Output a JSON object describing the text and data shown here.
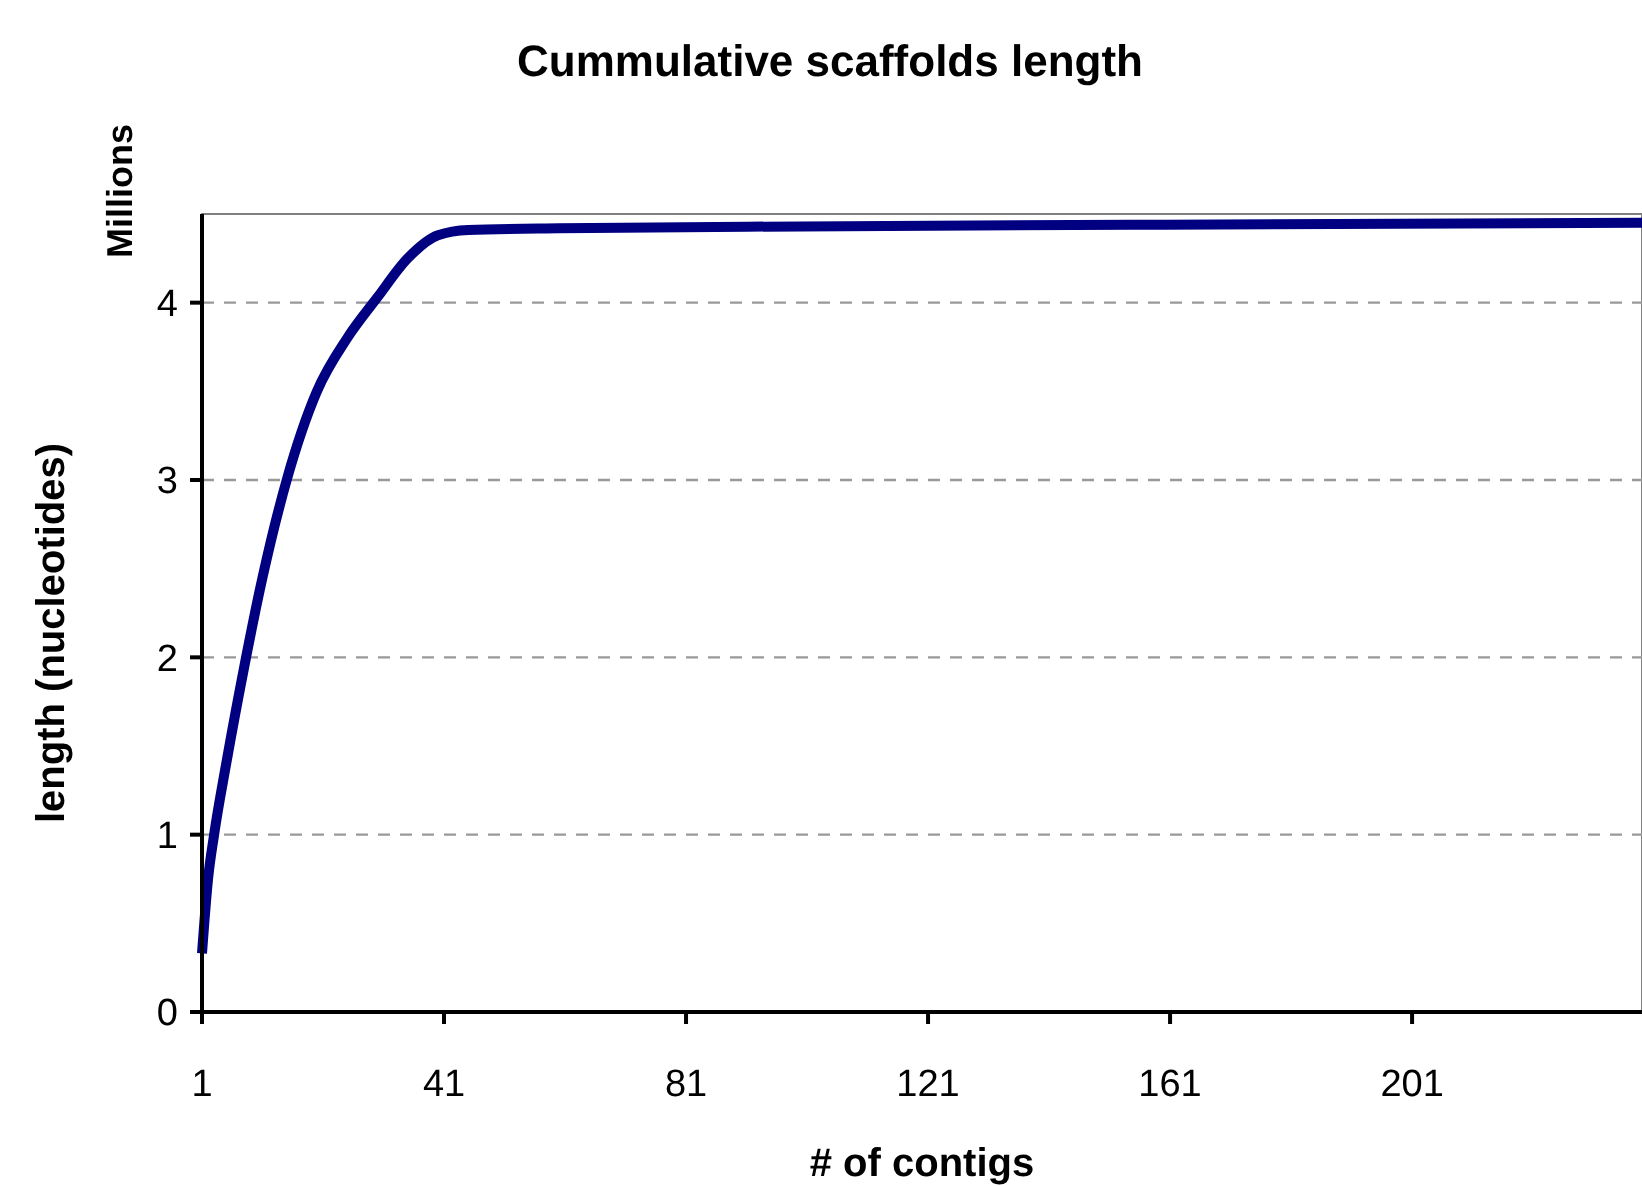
{
  "chart_data": {
    "type": "line",
    "title": "Cummulative scaffolds length",
    "xlabel": "# of contigs",
    "ylabel": "length (nucleotides)",
    "annotations": [
      "Millions"
    ],
    "x": [
      1,
      2,
      3,
      5,
      8,
      11,
      15,
      20,
      25,
      30,
      35,
      40,
      45,
      60,
      100,
      160,
      239
    ],
    "series": [
      {
        "color": "#000080",
        "values": [
          0.33,
          0.75,
          1.0,
          1.4,
          1.95,
          2.45,
          3.0,
          3.5,
          3.8,
          4.03,
          4.25,
          4.38,
          4.41,
          4.42,
          4.43,
          4.44,
          4.45
        ]
      }
    ],
    "xlim": [
      1,
      239
    ],
    "xticks": [
      1,
      41,
      81,
      121,
      161,
      201
    ],
    "ylim": [
      0,
      4.5
    ],
    "yticks": [
      0,
      1,
      2,
      3,
      4
    ],
    "grid": "y",
    "marker": "none",
    "line_style": "solid"
  }
}
